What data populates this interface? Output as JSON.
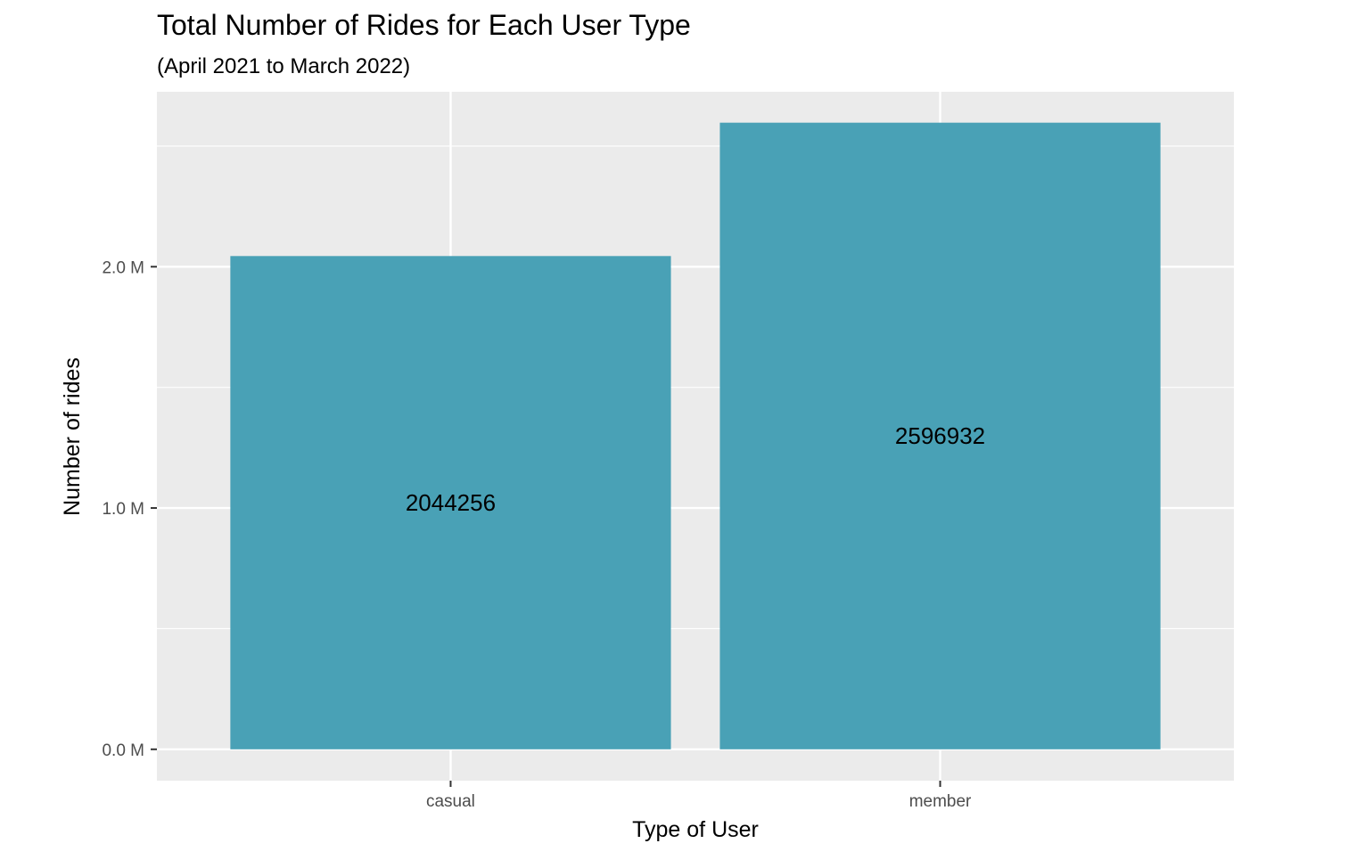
{
  "chart_data": {
    "type": "bar",
    "title": "Total Number of Rides for Each User Type",
    "subtitle": "(April 2021 to March 2022)",
    "xlabel": "Type of User",
    "ylabel": "Number of rides",
    "categories": [
      "casual",
      "member"
    ],
    "values": [
      2044256,
      2596932
    ],
    "data_labels": [
      "2044256",
      "2596932"
    ],
    "ylim": [
      -130000,
      2725000
    ],
    "yticks": [
      0,
      1000000,
      2000000
    ],
    "ytick_labels": [
      "0.0 M",
      "1.0 M",
      "2.0 M"
    ],
    "y_minor_gridlines": [
      500000,
      1500000,
      2500000
    ],
    "grid": true,
    "legend": "none",
    "colors": {
      "bar": "#49a1b6",
      "panel": "#ebebeb",
      "grid": "#ffffff"
    }
  }
}
